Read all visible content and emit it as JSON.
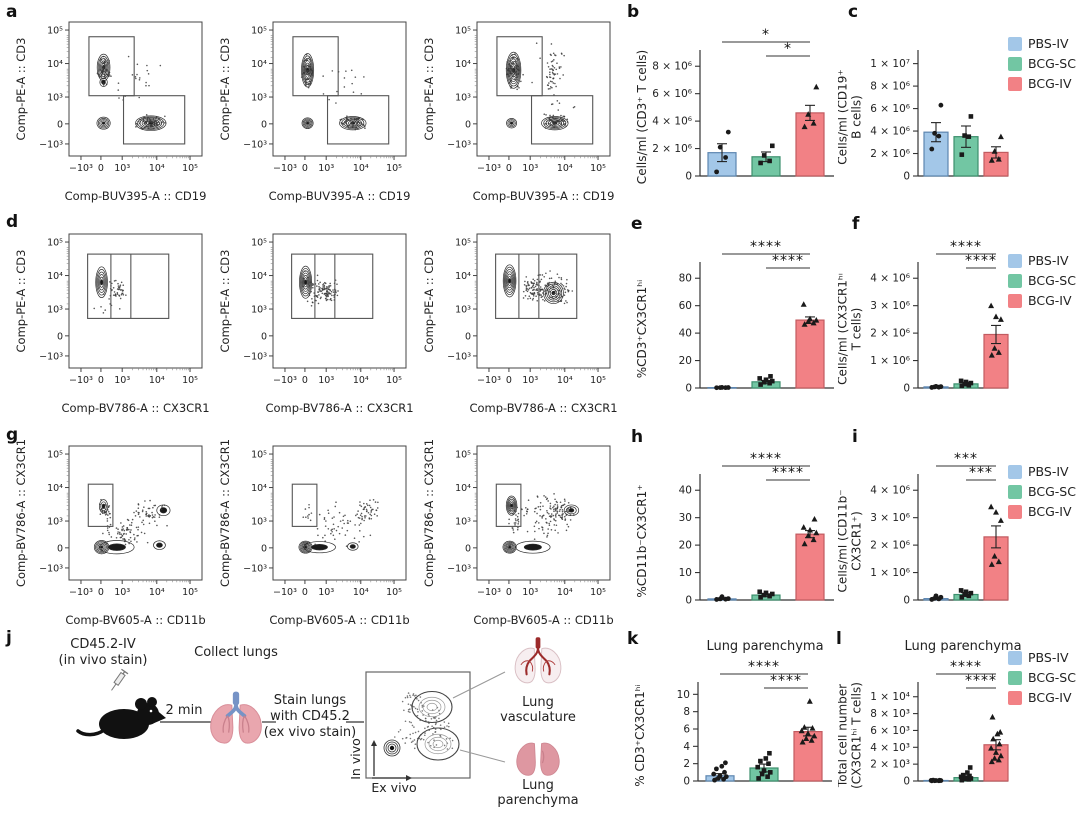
{
  "letters": {
    "a": "a",
    "b": "b",
    "c": "c",
    "d": "d",
    "e": "e",
    "f": "f",
    "g": "g",
    "h": "h",
    "i": "i",
    "j": "j",
    "k": "k",
    "l": "l"
  },
  "colors": {
    "pbs": "#a3c7e8",
    "pbs_edge": "#5d86b0",
    "bcg_sc": "#72c6a3",
    "bcg_sc_edge": "#3c8f6d",
    "bcg_iv": "#f28185",
    "bcg_iv_edge": "#c25b60"
  },
  "markers": [
    "circle",
    "square",
    "triangle"
  ],
  "legend": {
    "items": [
      {
        "label": "PBS-IV",
        "color": "#a3c7e8"
      },
      {
        "label": "BCG-SC",
        "color": "#72c6a3"
      },
      {
        "label": "BCG-IV",
        "color": "#f28185"
      }
    ]
  },
  "flow": {
    "ticks_x": [
      "−10³",
      "0",
      "10³",
      "10⁴",
      "10⁵"
    ],
    "ticks_y": [
      "10⁵",
      "10⁴",
      "10³",
      "0",
      "−10³"
    ],
    "panels": {
      "a": {
        "xlabel": "Comp-BUV395-A :: CD19",
        "ylabel": "Comp-PE-A :: CD3"
      },
      "d": {
        "xlabel": "Comp-BV786-A :: CX3CR1",
        "ylabel": "Comp-PE-A :: CD3"
      },
      "g": {
        "xlabel": "Comp-BV605-A :: CD11b",
        "ylabel": "Comp-BV786-A :: CX3CR1"
      }
    }
  },
  "panel_j": {
    "labels": {
      "iv_stain_1": "CD45.2-IV",
      "iv_stain_2": "(in vivo stain)",
      "time": "2 min",
      "collect": "Collect lungs",
      "ex_stain_1": "Stain lungs",
      "ex_stain_2": "with CD45.2",
      "ex_stain_3": "(ex vivo stain)",
      "axis_y": "In vivo",
      "axis_x": "Ex vivo",
      "vasc_1": "Lung",
      "vasc_2": "vasculature",
      "par_1": "Lung",
      "par_2": "parenchyma"
    }
  },
  "chart_data": [
    {
      "id": "b",
      "type": "bar",
      "title": "",
      "ylabel": "Cells/ml (CD3⁺ T cells)",
      "categories": [
        "PBS-IV",
        "BCG-SC",
        "BCG-IV"
      ],
      "values": [
        1700000.0,
        1400000.0,
        4600000.0
      ],
      "errors": [
        650000.0,
        350000.0,
        550000.0
      ],
      "points": [
        [
          300000.0,
          1350000.0,
          2100000.0,
          3200000.0
        ],
        [
          950000.0,
          1100000.0,
          1500000.0,
          2200000.0
        ],
        [
          3600000.0,
          3850000.0,
          4500000.0,
          6500000.0
        ]
      ],
      "yticks": [
        0,
        2000000.0,
        4000000.0,
        6000000.0,
        8000000.0
      ],
      "ytick_labels": [
        "0",
        "2 × 10⁶",
        "4 × 10⁶",
        "6 × 10⁶",
        "8 × 10⁶"
      ],
      "ylim": [
        0,
        8600000.0
      ],
      "sig": [
        {
          "from": 0,
          "to": 2,
          "label": "*"
        },
        {
          "from": 1,
          "to": 2,
          "label": "*"
        }
      ],
      "legend_position": "none"
    },
    {
      "id": "c",
      "type": "bar",
      "title": "",
      "ylabel": "Cells/ml (CD19⁺|B cells)",
      "categories": [
        "PBS-IV",
        "BCG-SC",
        "BCG-IV"
      ],
      "values": [
        3900000.0,
        3500000.0,
        2100000.0
      ],
      "errors": [
        850000.0,
        950000.0,
        500000.0
      ],
      "points": [
        [
          2400000.0,
          3550000.0,
          3800000.0,
          6300000.0
        ],
        [
          1900000.0,
          3500000.0,
          3600000.0,
          5300000.0
        ],
        [
          1400000.0,
          1500000.0,
          2200000.0,
          3500000.0
        ]
      ],
      "yticks": [
        0,
        2000000.0,
        4000000.0,
        6000000.0,
        8000000.0,
        10000000.0
      ],
      "ytick_labels": [
        "0",
        "2 × 10⁶",
        "4 × 10⁶",
        "6 × 10⁶",
        "8 × 10⁶",
        "1 × 10⁷"
      ],
      "ylim": [
        0,
        10500000.0
      ],
      "sig": [],
      "legend_position": "right"
    },
    {
      "id": "e",
      "type": "bar",
      "title": "",
      "ylabel": "%CD3⁺CX3CR1ʰⁱ",
      "categories": [
        "PBS-IV",
        "BCG-SC",
        "BCG-IV"
      ],
      "values": [
        0.3,
        4.5,
        49.5
      ],
      "errors": [
        0.15,
        1.0,
        2.3
      ],
      "points": [
        [
          0.2,
          0.25,
          0.3,
          0.35,
          0.4
        ],
        [
          2.5,
          3.5,
          4.2,
          5,
          6,
          7,
          8.5
        ],
        [
          46.5,
          47.5,
          48.5,
          49.5,
          50.5,
          61
        ]
      ],
      "yticks": [
        0,
        20,
        40,
        60,
        80
      ],
      "ytick_labels": [
        "0",
        "20",
        "40",
        "60",
        "80"
      ],
      "ylim": [
        0,
        86
      ],
      "sig": [
        {
          "from": 0,
          "to": 2,
          "label": "****"
        },
        {
          "from": 1,
          "to": 2,
          "label": "****"
        }
      ],
      "legend_position": "none"
    },
    {
      "id": "f",
      "type": "bar",
      "title": "",
      "ylabel": "Cells/ml (CX3CR1ʰⁱ|T cells)",
      "categories": [
        "PBS-IV",
        "BCG-SC",
        "BCG-IV"
      ],
      "values": [
        40000.0,
        150000.0,
        1950000.0
      ],
      "errors": [
        20000.0,
        50000.0,
        330000.0
      ],
      "points": [
        [
          20000.0,
          30000.0,
          40000.0,
          50000.0,
          60000.0
        ],
        [
          80000.0,
          100000.0,
          140000.0,
          180000.0,
          220000.0,
          260000.0
        ],
        [
          1200000.0,
          1300000.0,
          1450000.0,
          2500000.0,
          2600000.0,
          3000000.0
        ]
      ],
      "yticks": [
        0,
        1000000.0,
        2000000.0,
        3000000.0,
        4000000.0
      ],
      "ytick_labels": [
        "0",
        "1 × 10⁶",
        "2 × 10⁶",
        "3 × 10⁶",
        "4 × 10⁶"
      ],
      "ylim": [
        0,
        4300000.0
      ],
      "sig": [
        {
          "from": 0,
          "to": 2,
          "label": "****"
        },
        {
          "from": 1,
          "to": 2,
          "label": "****"
        }
      ],
      "legend_position": "right"
    },
    {
      "id": "h",
      "type": "bar",
      "title": "",
      "ylabel": "%CD11b⁻CX3CR1⁺",
      "categories": [
        "PBS-IV",
        "BCG-SC",
        "BCG-IV"
      ],
      "values": [
        0.4,
        1.8,
        24
      ],
      "errors": [
        0.2,
        0.45,
        1.3
      ],
      "points": [
        [
          0.2,
          0.3,
          0.4,
          0.5,
          1.2
        ],
        [
          1.0,
          1.4,
          1.8,
          2.2,
          2.6,
          3.0
        ],
        [
          20.5,
          22,
          23.5,
          24.5,
          25.5,
          26.5,
          29.5
        ]
      ],
      "yticks": [
        0,
        10,
        20,
        30,
        40
      ],
      "ytick_labels": [
        "0",
        "10",
        "20",
        "30",
        "40"
      ],
      "ylim": [
        0,
        43
      ],
      "sig": [
        {
          "from": 0,
          "to": 2,
          "label": "****"
        },
        {
          "from": 1,
          "to": 2,
          "label": "****"
        }
      ],
      "legend_position": "none"
    },
    {
      "id": "i",
      "type": "bar",
      "title": "",
      "ylabel": "Cells/ml (CD11b⁻|CX3CR1⁺)",
      "categories": [
        "PBS-IV",
        "BCG-SC",
        "BCG-IV"
      ],
      "values": [
        50000.0,
        200000.0,
        2300000.0
      ],
      "errors": [
        30000.0,
        70000.0,
        400000.0
      ],
      "points": [
        [
          20000.0,
          40000.0,
          60000.0,
          100000.0,
          150000.0
        ],
        [
          100000.0,
          150000.0,
          200000.0,
          250000.0,
          300000.0,
          350000.0
        ],
        [
          1300000.0,
          1400000.0,
          1600000.0,
          2900000.0,
          3200000.0,
          3400000.0
        ]
      ],
      "yticks": [
        0,
        1000000.0,
        2000000.0,
        3000000.0,
        4000000.0
      ],
      "ytick_labels": [
        "0",
        "1 × 10⁶",
        "2 × 10⁶",
        "3 × 10⁶",
        "4 × 10⁶"
      ],
      "ylim": [
        0,
        4300000.0
      ],
      "sig": [
        {
          "from": 0,
          "to": 2,
          "label": "***"
        },
        {
          "from": 1,
          "to": 2,
          "label": "***"
        }
      ],
      "legend_position": "right"
    },
    {
      "id": "k",
      "type": "bar",
      "title": "Lung parenchyma",
      "ylabel": "% CD3⁺CX3CR1ʰⁱ",
      "categories": [
        "PBS-IV",
        "BCG-SC",
        "BCG-IV"
      ],
      "values": [
        0.6,
        1.5,
        5.7
      ],
      "errors": [
        0.25,
        0.45,
        0.5
      ],
      "points": [
        [
          0.1,
          0.2,
          0.3,
          0.5,
          0.6,
          0.8,
          1.0,
          1.4,
          1.7,
          2.1
        ],
        [
          0.3,
          0.5,
          0.8,
          1.0,
          1.2,
          1.6,
          2.0,
          2.3,
          2.6,
          3.2
        ],
        [
          4.5,
          4.7,
          4.9,
          5.2,
          5.5,
          5.8,
          6.1,
          6.2,
          9.2
        ]
      ],
      "yticks": [
        0,
        2,
        4,
        6,
        8,
        10
      ],
      "ytick_labels": [
        "0",
        "2",
        "4",
        "6",
        "8",
        "10"
      ],
      "ylim": [
        0,
        10.5
      ],
      "sig": [
        {
          "from": 0,
          "to": 2,
          "label": "****"
        },
        {
          "from": 1,
          "to": 2,
          "label": "****"
        }
      ],
      "legend_position": "none"
    },
    {
      "id": "l",
      "type": "bar",
      "title": "Lung parenchyma",
      "ylabel": "Total cell number|(CX3CR1ʰⁱ T cells)",
      "categories": [
        "PBS-IV",
        "BCG-SC",
        "BCG-IV"
      ],
      "values": [
        60,
        400,
        4300
      ],
      "errors": [
        30,
        130,
        600
      ],
      "points": [
        [
          20,
          30,
          40,
          50,
          60,
          70,
          80,
          100
        ],
        [
          100,
          200,
          250,
          300,
          400,
          500,
          600,
          700,
          1000,
          1600
        ],
        [
          2300,
          2500,
          2700,
          3000,
          3400,
          3900,
          4400,
          5000,
          5600,
          5800,
          7600
        ]
      ],
      "yticks": [
        0,
        2000,
        4000,
        6000,
        8000,
        10000
      ],
      "ytick_labels": [
        "0",
        "2 × 10³",
        "4 × 10³",
        "6 × 10³",
        "8 × 10³",
        "1 × 10⁴"
      ],
      "ylim": [
        0,
        10800
      ],
      "sig": [
        {
          "from": 0,
          "to": 2,
          "label": "****"
        },
        {
          "from": 1,
          "to": 2,
          "label": "****"
        }
      ],
      "legend_position": "right"
    }
  ]
}
